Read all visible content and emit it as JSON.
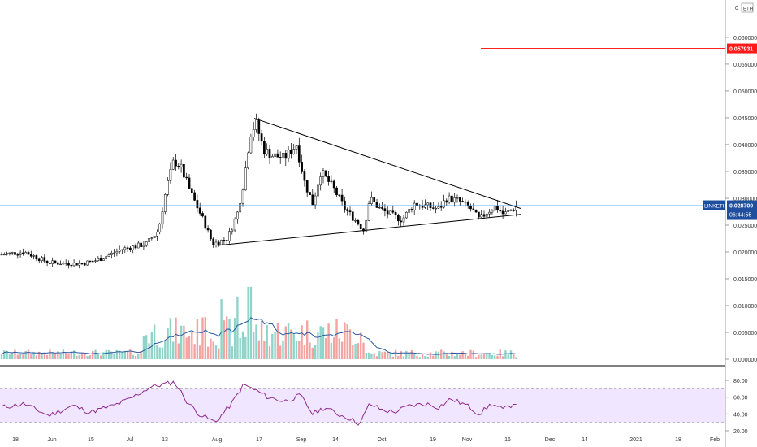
{
  "chart_data": {
    "type": "candlestick",
    "symbol": "LINKETH",
    "currency": "ETH",
    "price_scale_prefix": "0",
    "last_price": "0.028700",
    "countdown": "06:44:55",
    "alert_price": "0.057931",
    "colors": {
      "up": "#26a69a",
      "down": "#000000",
      "candle_up_fill": "#ffffff",
      "volume_up": "#8fd3c9",
      "volume_down": "#f4a3a3",
      "volume_ma": "#2c5aa0",
      "rsi_line": "#8e2a8e",
      "rsi_band": "#f0e6ff",
      "alert_line": "#ff2020",
      "last_price_line": "#2196f3",
      "last_price_label": "#1f4e9e",
      "trendline": "#000000"
    },
    "price_ticks": [
      "0.060000",
      "0.055000",
      "0.050000",
      "0.045000",
      "0.040000",
      "0.035000",
      "0.030000",
      "0.025000",
      "0.020000",
      "0.015000",
      "0.010000",
      "0.005000",
      "0.000000"
    ],
    "rsi_ticks": [
      "80.00",
      "60.00",
      "40.00",
      "20.00"
    ],
    "rsi_levels": [
      70,
      30
    ],
    "time_labels": [
      "18",
      "Jun",
      "15",
      "Jul",
      "13",
      "Aug",
      "17",
      "Sep",
      "14",
      "Oct",
      "19",
      "Nov",
      "16",
      "Dec",
      "14",
      "2021",
      "18",
      "Feb"
    ],
    "triangle": {
      "upper": [
        [
          0.0449,
          0.0281
        ],
        [
          0.0,
          0.0
        ]
      ],
      "lower": [
        [
          0.0212,
          0.027
        ]
      ]
    }
  }
}
